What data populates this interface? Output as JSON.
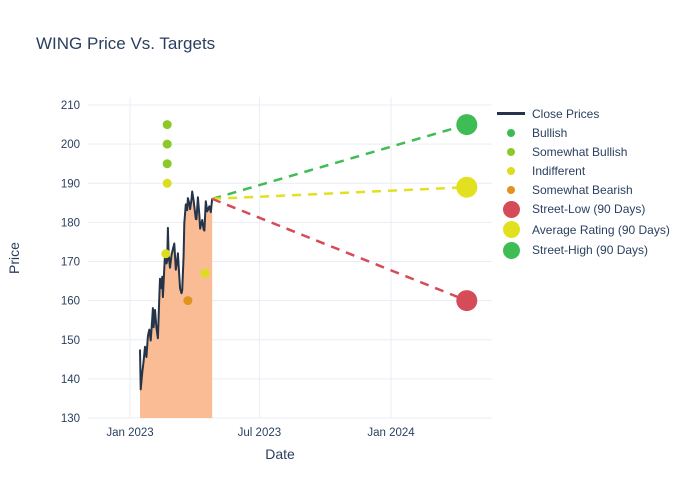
{
  "chart": {
    "title": "WING Price Vs. Targets",
    "xlabel": "Date",
    "ylabel": "Price"
  },
  "chart_data": {
    "type": "line",
    "title": "WING Price Vs. Targets",
    "xlabel": "Date",
    "ylabel": "Price",
    "ylim": [
      130,
      210
    ],
    "grid": true,
    "legend_position": "right",
    "x_unit": "days since 2023-01-01",
    "colors": {
      "grid": "#e9eef5",
      "text": "#2a3f5f",
      "close_line": "#263449",
      "close_fill": "#f9bc95",
      "bullish": "#3cba54",
      "somewhat_bullish": "#8cc928",
      "indifferent": "#dedc1f",
      "somewhat_bearish": "#e1931e",
      "street_low": "#d54b57",
      "average_rating": "#e3e11f",
      "street_high": "#3fbd55"
    },
    "yticks": [
      130,
      140,
      150,
      160,
      170,
      180,
      190,
      200,
      210
    ],
    "xticks": [
      {
        "label": "Jan 2023",
        "day": 0
      },
      {
        "label": "Jul 2023",
        "day": 181
      },
      {
        "label": "Jan 2024",
        "day": 365
      }
    ],
    "close_prices": {
      "name": "Close Prices",
      "color": "#263449",
      "fill": "#f9bc95",
      "points": [
        [
          14,
          147.5
        ],
        [
          15,
          137.3
        ],
        [
          17,
          141.5
        ],
        [
          19,
          144.5
        ],
        [
          21,
          148.2
        ],
        [
          23,
          145.6
        ],
        [
          25,
          150.9
        ],
        [
          27,
          152.6
        ],
        [
          29,
          149.8
        ],
        [
          31,
          155.2
        ],
        [
          32,
          158.1
        ],
        [
          33,
          153.2
        ],
        [
          35,
          157.6
        ],
        [
          37,
          152.9
        ],
        [
          39,
          150.4
        ],
        [
          41,
          160.8
        ],
        [
          42,
          165.6
        ],
        [
          44,
          163.2
        ],
        [
          45,
          166.1
        ],
        [
          46,
          160.9
        ],
        [
          48,
          168.3
        ],
        [
          49,
          171.8
        ],
        [
          51,
          169.5
        ],
        [
          52,
          170.2
        ],
        [
          53,
          178.6
        ],
        [
          54,
          171.9
        ],
        [
          56,
          168.4
        ],
        [
          58,
          171.6
        ],
        [
          60,
          173.2
        ],
        [
          62,
          174.6
        ],
        [
          64,
          167.9
        ],
        [
          66,
          170.3
        ],
        [
          67,
          172.1
        ],
        [
          69,
          166.2
        ],
        [
          70,
          163.1
        ],
        [
          72,
          161.9
        ],
        [
          73,
          162.6
        ],
        [
          75,
          171.4
        ],
        [
          76,
          179.8
        ],
        [
          78,
          184.6
        ],
        [
          80,
          183.1
        ],
        [
          81,
          186.2
        ],
        [
          83,
          184.8
        ],
        [
          84,
          183.4
        ],
        [
          86,
          185.9
        ],
        [
          87,
          187.9
        ],
        [
          89,
          185.6
        ],
        [
          90,
          184.1
        ],
        [
          92,
          180.9
        ],
        [
          93,
          180.8
        ],
        [
          95,
          186.4
        ],
        [
          97,
          181.7
        ],
        [
          98,
          178.4
        ],
        [
          100,
          179.9
        ],
        [
          101,
          180.6
        ],
        [
          103,
          178.2
        ],
        [
          104,
          177.9
        ],
        [
          106,
          185.4
        ],
        [
          108,
          182.8
        ],
        [
          109,
          183.2
        ],
        [
          111,
          184.1
        ],
        [
          113,
          182.6
        ],
        [
          115,
          186.1
        ]
      ]
    },
    "ratings": [
      {
        "name": "Bullish",
        "color": "#3cba54",
        "points": []
      },
      {
        "name": "Somewhat Bullish",
        "color": "#8cc928",
        "points": [
          [
            52,
            205
          ],
          [
            52,
            200
          ],
          [
            52,
            195
          ]
        ]
      },
      {
        "name": "Indifferent",
        "color": "#dedc1f",
        "points": [
          [
            52,
            190
          ],
          [
            50,
            172
          ],
          [
            105,
            167
          ]
        ]
      },
      {
        "name": "Somewhat Bearish",
        "color": "#e1931e",
        "points": [
          [
            81,
            160
          ]
        ]
      }
    ],
    "targets": [
      {
        "name": "Street-High (90 Days)",
        "color": "#3fbd55",
        "from": [
          115,
          186
        ],
        "to": [
          471,
          205
        ]
      },
      {
        "name": "Average Rating (90 Days)",
        "color": "#e3e11f",
        "from": [
          115,
          186
        ],
        "to": [
          471,
          189
        ]
      },
      {
        "name": "Street-Low (90 Days)",
        "color": "#d54b57",
        "from": [
          115,
          186
        ],
        "to": [
          471,
          160
        ]
      }
    ]
  },
  "legend": {
    "items": [
      {
        "label": "Close Prices",
        "swatch": "line",
        "color": "#263449"
      },
      {
        "label": "Bullish",
        "swatch": "dot",
        "color": "#3cba54"
      },
      {
        "label": "Somewhat Bullish",
        "swatch": "dot",
        "color": "#8cc928"
      },
      {
        "label": "Indifferent",
        "swatch": "dot",
        "color": "#dedc1f"
      },
      {
        "label": "Somewhat Bearish",
        "swatch": "dot",
        "color": "#e1931e"
      },
      {
        "label": "Street-Low (90 Days)",
        "swatch": "bigdot",
        "color": "#d54b57"
      },
      {
        "label": "Average Rating (90 Days)",
        "swatch": "bigdot",
        "color": "#e3e11f"
      },
      {
        "label": "Street-High (90 Days)",
        "swatch": "bigdot",
        "color": "#3fbd55"
      }
    ]
  }
}
